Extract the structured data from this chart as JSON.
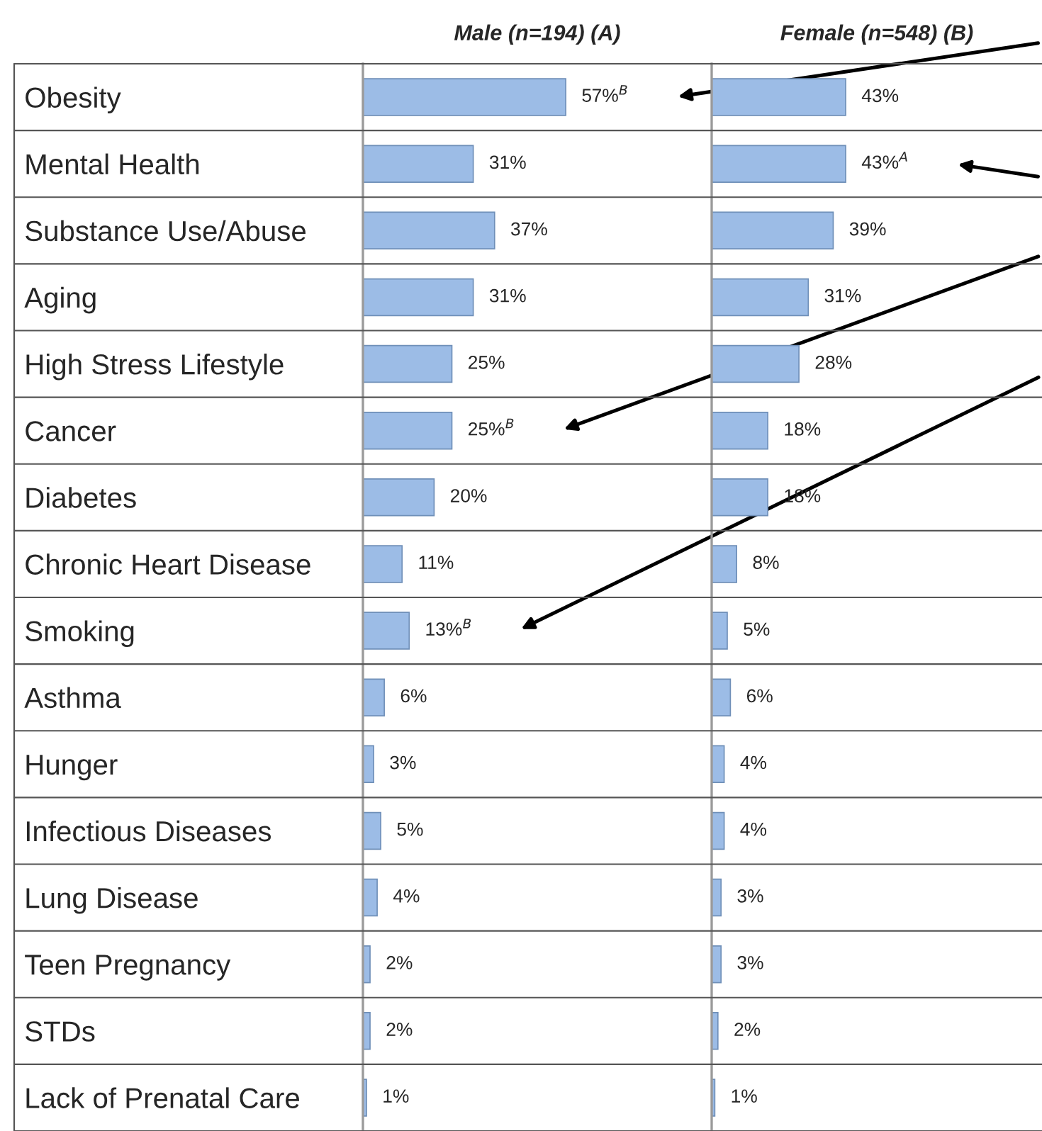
{
  "chart_data": [
    {
      "type": "bar",
      "orientation": "horizontal",
      "title": "Male (n=194) (A)",
      "tick_labels": "y",
      "color": "#9cbce6",
      "xlim": [
        0,
        98
      ],
      "categories": [
        "Obesity",
        "Mental Health",
        "Substance Use/Abuse",
        "Aging",
        "High Stress Lifestyle",
        "Cancer",
        "Diabetes",
        "Chronic Heart Disease",
        "Smoking",
        "Asthma",
        "Hunger",
        "Infectious Diseases",
        "Lung Disease",
        "Teen Pregnancy",
        "STDs",
        "Lack of Prenatal Care"
      ],
      "values": [
        57,
        31,
        37,
        31,
        25,
        25,
        20,
        11,
        13,
        6,
        3,
        5,
        4,
        2,
        2,
        1
      ],
      "value_labels": [
        "57%$^{B}$",
        "31%",
        "37%",
        "31%",
        "25%",
        "25%$^{B}$",
        "20%",
        "11%",
        "13%$^{B}$",
        "6%",
        "3%",
        "5%",
        "4%",
        "2%",
        "2%",
        "1%"
      ]
    },
    {
      "type": "bar",
      "orientation": "horizontal",
      "title": "Female (n=548) (B)",
      "tick_labels": false,
      "color": "#9cbce6",
      "xlim": [
        0,
        106
      ],
      "categories": [
        null,
        null,
        null,
        null,
        null,
        null,
        null,
        null,
        null,
        null,
        null,
        null,
        null,
        null,
        null,
        null
      ],
      "values": [
        43,
        43,
        39,
        31,
        28,
        18,
        18,
        8,
        5,
        6,
        4,
        4,
        3,
        3,
        2,
        1
      ],
      "value_labels": [
        "43%",
        "43%$^{A}$",
        "39%",
        "31%",
        "28%",
        "18%",
        "18%",
        "8%",
        "5%",
        "6%",
        "4%",
        "4%",
        "3%",
        "3%",
        "2%",
        "1%"
      ]
    }
  ]
}
